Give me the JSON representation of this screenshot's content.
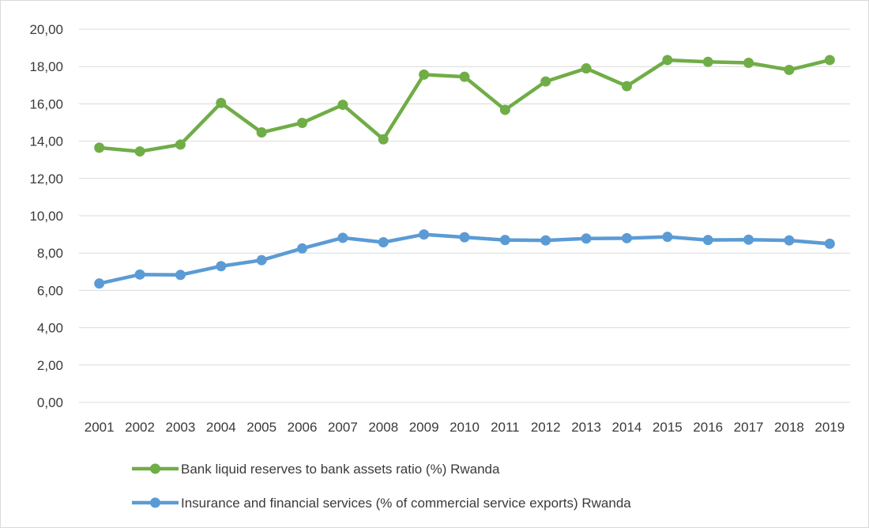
{
  "chart_data": {
    "type": "line",
    "title": "",
    "xlabel": "",
    "ylabel": "",
    "categories": [
      "2001",
      "2002",
      "2003",
      "2004",
      "2005",
      "2006",
      "2007",
      "2008",
      "2009",
      "2010",
      "2011",
      "2012",
      "2013",
      "2014",
      "2015",
      "2016",
      "2017",
      "2018",
      "2019"
    ],
    "y_ticks": [
      "0,00",
      "2,00",
      "4,00",
      "6,00",
      "8,00",
      "10,00",
      "12,00",
      "14,00",
      "16,00",
      "18,00",
      "20,00"
    ],
    "ylim": [
      0,
      20
    ],
    "grid": true,
    "legend_placement": "bottom",
    "series": [
      {
        "name": "Bank liquid reserves to bank assets ratio (%) Rwanda",
        "color": "#70ad47",
        "values": [
          13.65,
          13.45,
          13.82,
          16.05,
          14.47,
          14.98,
          15.95,
          14.1,
          17.57,
          17.45,
          15.68,
          17.2,
          17.9,
          16.95,
          18.35,
          18.25,
          18.2,
          17.82,
          18.35
        ]
      },
      {
        "name": "Insurance and financial services (% of commercial service exports) Rwanda",
        "color": "#5b9bd5",
        "values": [
          6.37,
          6.85,
          6.83,
          7.3,
          7.62,
          8.25,
          8.82,
          8.58,
          9.0,
          8.85,
          8.7,
          8.68,
          8.78,
          8.8,
          8.87,
          8.7,
          8.72,
          8.68,
          8.5
        ]
      }
    ]
  }
}
